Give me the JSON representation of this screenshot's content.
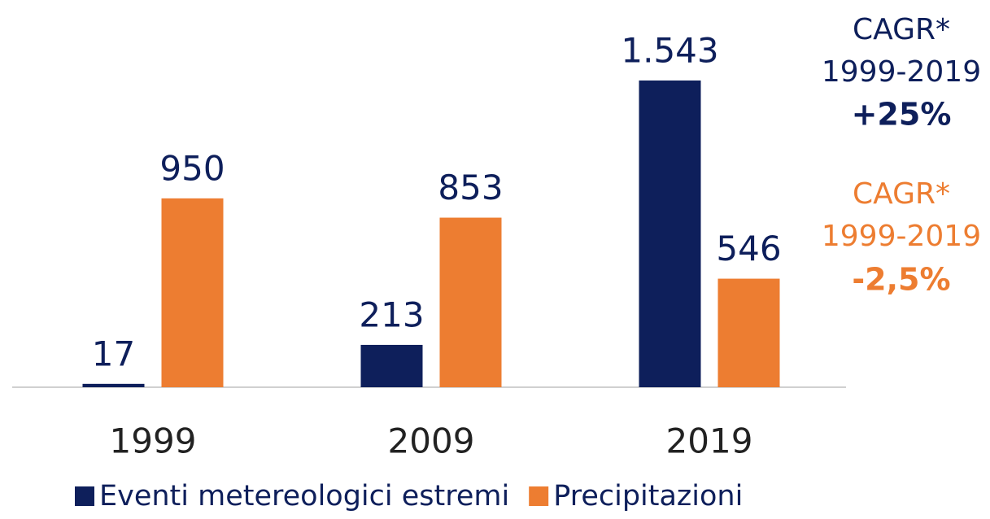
{
  "chart_data": {
    "type": "bar",
    "categories": [
      "1999",
      "2009",
      "2019"
    ],
    "series": [
      {
        "name": "Eventi metereologici estremi",
        "color": "#0e1f5b",
        "values": [
          17,
          213,
          1543
        ],
        "value_labels": [
          "17",
          "213",
          "1.543"
        ]
      },
      {
        "name": "Precipitazioni",
        "color": "#ed7d31",
        "values": [
          950,
          853,
          546
        ],
        "value_labels": [
          "950",
          "853",
          "546"
        ]
      }
    ],
    "ylim": [
      0,
      1600
    ],
    "annotations": [
      {
        "lines": [
          "CAGR*",
          "1999-2019",
          "+25%"
        ],
        "color": "#0e1f5b"
      },
      {
        "lines": [
          "CAGR*",
          "1999-2019",
          "-2,5%"
        ],
        "color": "#ed7d31"
      }
    ]
  }
}
